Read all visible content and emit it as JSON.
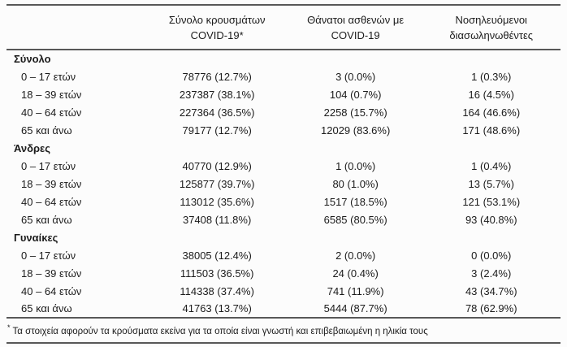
{
  "table": {
    "headers": [
      {
        "line1": "Σύνολο κρουσμάτων",
        "line2": "COVID-19*"
      },
      {
        "line1": "Θάνατοι ασθενών με",
        "line2": "COVID-19"
      },
      {
        "line1": "Νοσηλευόμενοι",
        "line2": "διασωληνωθέντες"
      }
    ],
    "groups": [
      {
        "label": "Σύνολο",
        "rows": [
          {
            "label": "0 – 17 ετών",
            "cases": "78776 (12.7%)",
            "deaths": "3 (0.0%)",
            "intubated": "1 (0.3%)"
          },
          {
            "label": "18 – 39 ετών",
            "cases": "237387 (38.1%)",
            "deaths": "104 (0.7%)",
            "intubated": "16 (4.5%)"
          },
          {
            "label": "40 – 64 ετών",
            "cases": "227364 (36.5%)",
            "deaths": "2258 (15.7%)",
            "intubated": "164 (46.6%)"
          },
          {
            "label": "65 και άνω",
            "cases": "79177 (12.7%)",
            "deaths": "12029 (83.6%)",
            "intubated": "171 (48.6%)"
          }
        ]
      },
      {
        "label": "Άνδρες",
        "rows": [
          {
            "label": "0 – 17 ετών",
            "cases": "40770 (12.9%)",
            "deaths": "1 (0.0%)",
            "intubated": "1 (0.4%)"
          },
          {
            "label": "18 – 39 ετών",
            "cases": "125877 (39.7%)",
            "deaths": "80 (1.0%)",
            "intubated": "13 (5.7%)"
          },
          {
            "label": "40 – 64 ετών",
            "cases": "113012 (35.6%)",
            "deaths": "1517 (18.5%)",
            "intubated": "121 (53.1%)"
          },
          {
            "label": "65 και άνω",
            "cases": "37408 (11.8%)",
            "deaths": "6585 (80.5%)",
            "intubated": "93 (40.8%)"
          }
        ]
      },
      {
        "label": "Γυναίκες",
        "rows": [
          {
            "label": "0 – 17 ετών",
            "cases": "38005 (12.4%)",
            "deaths": "2 (0.0%)",
            "intubated": "0 (0.0%)"
          },
          {
            "label": "18 – 39 ετών",
            "cases": "111503 (36.5%)",
            "deaths": "24 (0.4%)",
            "intubated": "3 (2.4%)"
          },
          {
            "label": "40 – 64 ετών",
            "cases": "114338 (37.4%)",
            "deaths": "741 (11.9%)",
            "intubated": "43 (34.7%)"
          },
          {
            "label": "65 και άνω",
            "cases": "41763 (13.7%)",
            "deaths": "5444 (87.7%)",
            "intubated": "78 (62.9%)"
          }
        ]
      }
    ],
    "footnote_marker": "*",
    "footnote": "Τα στοιχεία αφορούν τα κρούσματα εκείνα για τα οποία είναι γνωστή και επιβεβαιωμένη η ηλικία τους"
  }
}
